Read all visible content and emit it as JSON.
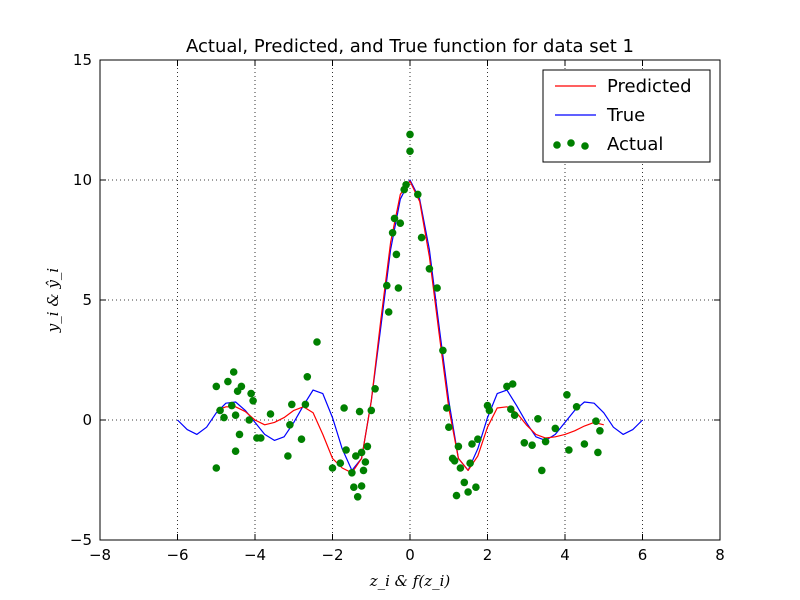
{
  "chart_data": {
    "type": "line+scatter",
    "title": "Actual, Predicted, and True function for data set 1",
    "xlabel": "z_i & f(z_i)",
    "ylabel": "y_i & ŷ_i",
    "xlim": [
      -8,
      8
    ],
    "ylim": [
      -5,
      15
    ],
    "xticks": [
      -8,
      -6,
      -4,
      -2,
      0,
      2,
      4,
      6,
      8
    ],
    "yticks": [
      -5,
      0,
      5,
      10,
      15
    ],
    "xtick_labels": [
      "−8",
      "−6",
      "−4",
      "−2",
      "0",
      "2",
      "4",
      "6",
      "8"
    ],
    "ytick_labels": [
      "−5",
      "0",
      "5",
      "10",
      "15"
    ],
    "grid": true,
    "legend_position": "top-right",
    "legend": [
      {
        "label": "Predicted",
        "kind": "line",
        "color": "#ff0000"
      },
      {
        "label": "True",
        "kind": "line",
        "color": "#0000ff"
      },
      {
        "label": "Actual",
        "kind": "scatter",
        "color": "#008000"
      }
    ],
    "series": [
      {
        "name": "True",
        "type": "line",
        "color": "#0000ff",
        "x": [
          -6.0,
          -5.75,
          -5.5,
          -5.25,
          -5.0,
          -4.75,
          -4.5,
          -4.25,
          -4.0,
          -3.75,
          -3.5,
          -3.25,
          -3.0,
          -2.75,
          -2.5,
          -2.25,
          -2.0,
          -1.75,
          -1.5,
          -1.25,
          -1.0,
          -0.75,
          -0.5,
          -0.25,
          0.0,
          0.25,
          0.5,
          0.75,
          1.0,
          1.25,
          1.5,
          1.75,
          2.0,
          2.25,
          2.5,
          2.75,
          3.0,
          3.25,
          3.5,
          3.75,
          4.0,
          4.25,
          4.5,
          4.75,
          5.0,
          5.25,
          5.5,
          5.75,
          6.0
        ],
        "values": [
          0.0,
          -0.4,
          -0.6,
          -0.3,
          0.3,
          0.7,
          0.75,
          0.4,
          -0.1,
          -0.6,
          -0.85,
          -0.7,
          -0.1,
          0.6,
          1.25,
          1.1,
          0.1,
          -1.2,
          -2.1,
          -1.6,
          0.8,
          3.9,
          7.1,
          9.2,
          10.0,
          9.2,
          7.1,
          3.9,
          0.8,
          -1.6,
          -2.1,
          -1.2,
          0.1,
          1.1,
          1.25,
          0.6,
          -0.1,
          -0.7,
          -0.85,
          -0.6,
          -0.1,
          0.4,
          0.75,
          0.7,
          0.3,
          -0.3,
          -0.6,
          -0.4,
          0.0
        ]
      },
      {
        "name": "Predicted",
        "type": "line",
        "color": "#ff0000",
        "x": [
          -5.0,
          -4.75,
          -4.5,
          -4.25,
          -4.0,
          -3.75,
          -3.5,
          -3.25,
          -3.0,
          -2.75,
          -2.5,
          -2.25,
          -2.0,
          -1.75,
          -1.5,
          -1.25,
          -1.0,
          -0.75,
          -0.5,
          -0.25,
          0.0,
          0.25,
          0.5,
          0.75,
          1.0,
          1.25,
          1.5,
          1.75,
          2.0,
          2.25,
          2.5,
          2.75,
          3.0,
          3.25,
          3.5,
          3.75,
          4.0,
          4.25,
          4.5,
          4.75,
          5.0
        ],
        "values": [
          0.4,
          0.55,
          0.55,
          0.35,
          0.0,
          -0.2,
          -0.1,
          0.1,
          0.4,
          0.55,
          0.3,
          -0.6,
          -1.6,
          -2.0,
          -2.2,
          -1.6,
          0.8,
          4.2,
          7.4,
          9.4,
          9.95,
          9.1,
          6.8,
          3.6,
          0.5,
          -1.6,
          -2.1,
          -1.5,
          -0.3,
          0.5,
          0.55,
          0.3,
          -0.2,
          -0.6,
          -0.75,
          -0.7,
          -0.6,
          -0.45,
          -0.25,
          -0.1,
          -0.2
        ]
      },
      {
        "name": "Actual",
        "type": "scatter",
        "color": "#008000",
        "x": [
          -5.0,
          -5.0,
          -4.9,
          -4.8,
          -4.7,
          -4.6,
          -4.55,
          -4.5,
          -4.5,
          -4.45,
          -4.4,
          -4.35,
          -4.15,
          -4.1,
          -4.05,
          -3.95,
          -3.85,
          -3.6,
          -3.15,
          -3.1,
          -3.05,
          -2.8,
          -2.7,
          -2.65,
          -2.4,
          -2.0,
          -1.8,
          -1.7,
          -1.65,
          -1.5,
          -1.45,
          -1.4,
          -1.35,
          -1.3,
          -1.25,
          -1.25,
          -1.2,
          -1.15,
          -1.1,
          -1.0,
          -0.9,
          -0.6,
          -0.55,
          -0.45,
          -0.4,
          -0.35,
          -0.3,
          -0.25,
          -0.15,
          -0.1,
          0.0,
          0.0,
          0.2,
          0.3,
          0.5,
          0.7,
          0.85,
          0.95,
          1.0,
          1.1,
          1.15,
          1.2,
          1.25,
          1.3,
          1.4,
          1.5,
          1.55,
          1.6,
          1.7,
          1.75,
          2.0,
          2.05,
          2.5,
          2.6,
          2.65,
          2.7,
          2.95,
          3.15,
          3.3,
          3.4,
          3.5,
          3.75,
          4.05,
          4.1,
          4.3,
          4.5,
          4.8,
          4.85,
          4.9
        ],
        "values": [
          -2.0,
          1.4,
          0.4,
          0.1,
          1.6,
          0.6,
          2.0,
          0.2,
          -1.3,
          1.2,
          -0.6,
          1.4,
          0.0,
          1.1,
          0.8,
          -0.75,
          -0.75,
          0.25,
          -1.5,
          -0.2,
          0.65,
          -0.8,
          0.65,
          1.8,
          3.25,
          -2.0,
          -1.8,
          0.5,
          -1.25,
          -2.2,
          -2.8,
          -1.5,
          -3.2,
          0.35,
          -1.35,
          -2.75,
          -2.1,
          -1.75,
          -1.1,
          0.4,
          1.3,
          5.6,
          4.5,
          7.8,
          8.4,
          6.9,
          5.5,
          8.2,
          9.6,
          9.8,
          11.2,
          11.9,
          9.4,
          7.6,
          6.3,
          5.5,
          2.9,
          0.5,
          -0.3,
          -1.6,
          -1.7,
          -3.15,
          -1.1,
          -2.0,
          -2.6,
          -3.0,
          -1.8,
          -1.0,
          -2.8,
          -0.8,
          0.6,
          0.4,
          1.4,
          0.45,
          1.5,
          0.2,
          -0.95,
          -1.05,
          0.05,
          -2.1,
          -0.9,
          -0.35,
          1.05,
          -1.25,
          0.55,
          -1.0,
          -0.05,
          -1.35,
          -0.45
        ]
      }
    ]
  }
}
